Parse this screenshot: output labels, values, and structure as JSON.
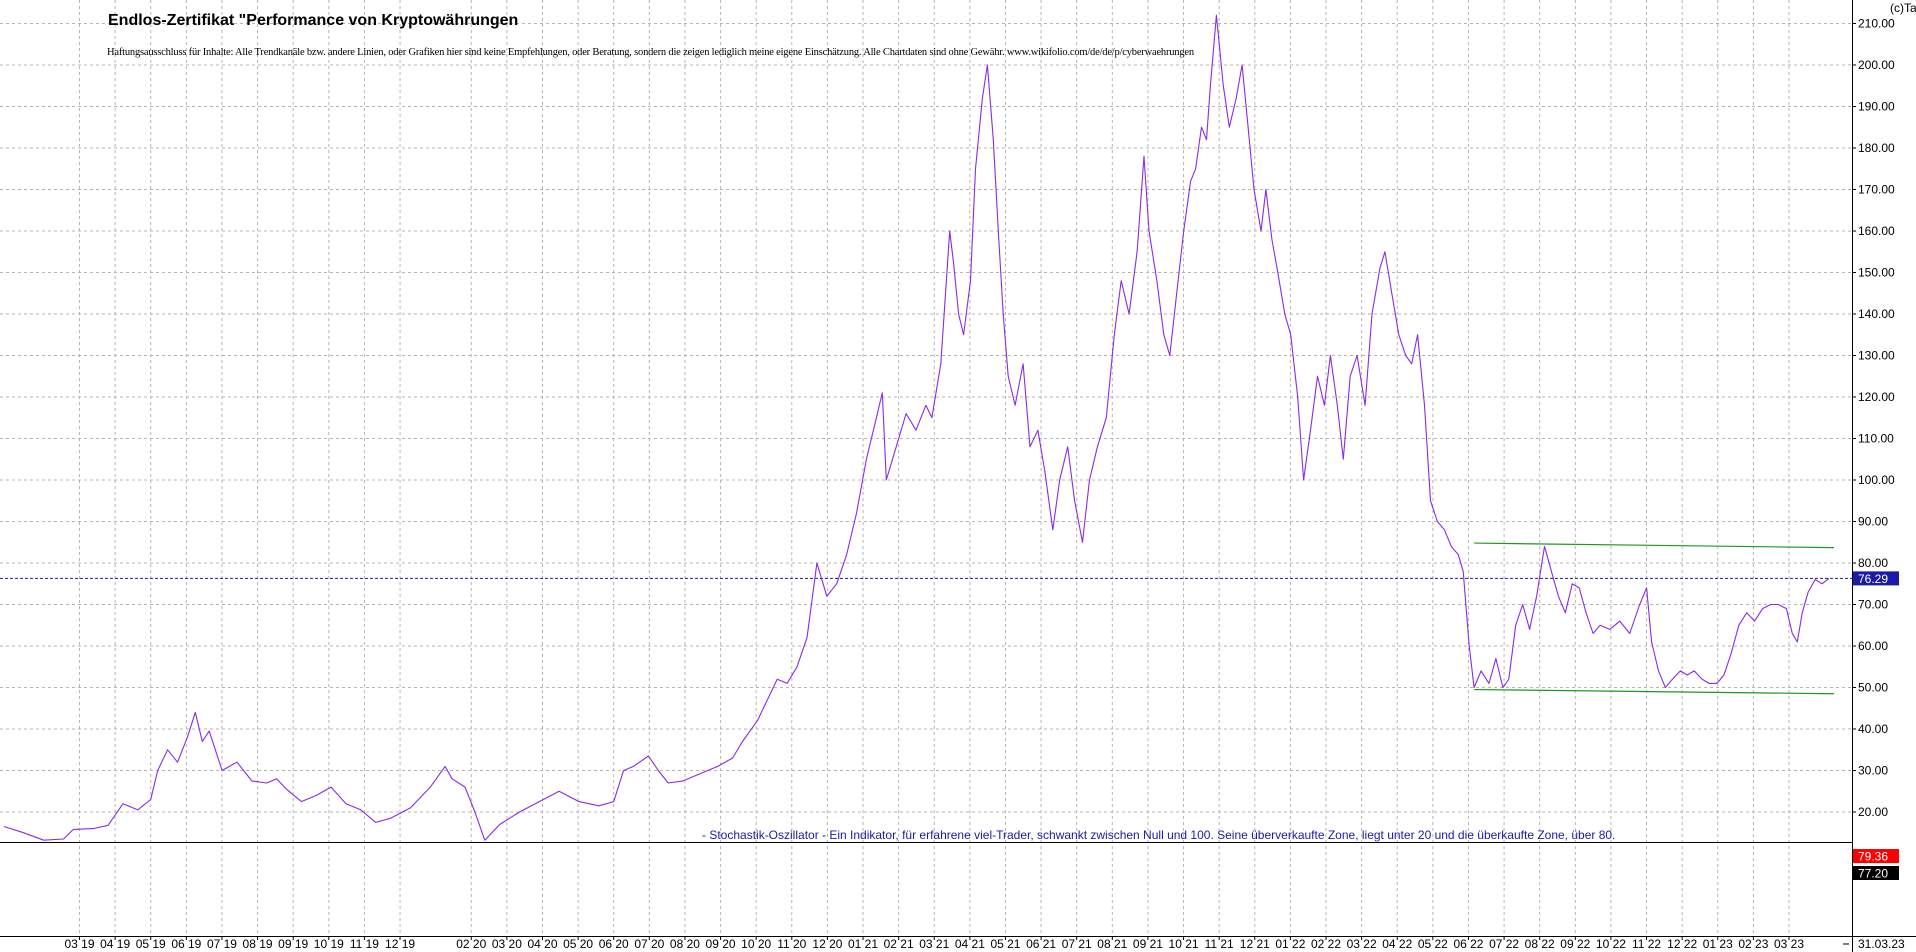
{
  "chart_data": {
    "type": "line",
    "title": "Endlos-Zertifikat \"Performance von Kryptowährungen",
    "subtitle": "Haftungsausschluss für Inhalte: Alle Trendkanäle bzw. andere Linien, oder Grafiken hier sind keine Empfehlungen, oder Beratung, sondern die zeigen lediglich meine eigene Einschätzung. Alle Chartdaten sind ohne Gewähr.  www.wikifolio.com/de/de/p/cyberwaehrungen",
    "watermark": "(c)Tai-Pan",
    "indicator_note": "- Stochastik-Oszillator - Ein Indikator, für erfahrene viel-Trader, schwankt zwischen Null und 100. Seine überverkaufte Zone, liegt unter 20 und die überkaufte Zone, über 80.",
    "ylim": [
      11,
      212
    ],
    "y_ticks": [
      "210.00",
      "200.00",
      "190.00",
      "180.00",
      "170.00",
      "160.00",
      "150.00",
      "140.00",
      "130.00",
      "120.00",
      "110.00",
      "100.00",
      "90.00",
      "80.00",
      "70.00",
      "60.00",
      "50.00",
      "40.00",
      "30.00",
      "20.00"
    ],
    "x_ticks": [
      "03 19",
      "04 19",
      "05 19",
      "06 19",
      "07 19",
      "08 19",
      "09 19",
      "10 19",
      "11 19",
      "12 19",
      "02 20",
      "03 20",
      "04 20",
      "05 20",
      "06 20",
      "07 20",
      "08 20",
      "09 20",
      "10 20",
      "11 20",
      "12 20",
      "01 21",
      "02 21",
      "03 21",
      "04 21",
      "05 21",
      "06 21",
      "07 21",
      "08 21",
      "09 21",
      "10 21",
      "11 21",
      "12 21",
      "01 22",
      "02 22",
      "03 22",
      "04 22",
      "05 22",
      "06 22",
      "07 22",
      "08 22",
      "09 22",
      "10 22",
      "11 22",
      "12 22",
      "01 23",
      "02 23",
      "03 23"
    ],
    "x_last_label": "31.03.23",
    "price_series": {
      "name": "Kurs",
      "color": "#8a2be2",
      "points": [
        [
          0,
          16.5
        ],
        [
          2,
          15.0
        ],
        [
          4,
          13.2
        ],
        [
          6,
          13.5
        ],
        [
          7,
          15.8
        ],
        [
          9,
          16.0
        ],
        [
          10.5,
          16.8
        ],
        [
          12,
          22.0
        ],
        [
          13.5,
          20.5
        ],
        [
          14.8,
          23.0
        ],
        [
          15.5,
          30.0
        ],
        [
          16.5,
          35.0
        ],
        [
          17.5,
          32.0
        ],
        [
          18.5,
          38.0
        ],
        [
          19.3,
          44.0
        ],
        [
          20,
          37.0
        ],
        [
          20.7,
          39.5
        ],
        [
          22,
          30.0
        ],
        [
          23.5,
          32.0
        ],
        [
          25,
          27.5
        ],
        [
          26.5,
          27.0
        ],
        [
          27.5,
          28.0
        ],
        [
          28.5,
          25.5
        ],
        [
          30,
          22.5
        ],
        [
          31.5,
          24.0
        ],
        [
          33,
          26.0
        ],
        [
          34.5,
          22.0
        ],
        [
          36,
          20.5
        ],
        [
          37.5,
          17.5
        ],
        [
          39,
          18.5
        ],
        [
          41,
          21.0
        ],
        [
          43,
          26.0
        ],
        [
          44.5,
          31.0
        ],
        [
          45.2,
          28.0
        ],
        [
          46.5,
          26.0
        ],
        [
          47.5,
          20.0
        ],
        [
          48.5,
          13.2
        ],
        [
          50,
          17.0
        ],
        [
          52,
          20.0
        ],
        [
          54,
          22.5
        ],
        [
          56,
          25.0
        ],
        [
          58,
          22.5
        ],
        [
          60,
          21.5
        ],
        [
          61.5,
          22.5
        ],
        [
          62.5,
          30.0
        ],
        [
          63.5,
          31.0
        ],
        [
          65,
          33.5
        ],
        [
          66,
          30.0
        ],
        [
          67,
          27.0
        ],
        [
          68.5,
          27.5
        ],
        [
          70,
          29.0
        ],
        [
          72,
          31.0
        ],
        [
          73.5,
          33.0
        ],
        [
          74.5,
          37.0
        ],
        [
          76,
          42.0
        ],
        [
          77,
          47.0
        ],
        [
          78,
          52.0
        ],
        [
          79,
          51.0
        ],
        [
          80,
          55.0
        ],
        [
          81,
          62.0
        ],
        [
          82,
          80.0
        ],
        [
          83,
          72.0
        ],
        [
          84,
          75.0
        ],
        [
          85,
          82.0
        ],
        [
          86,
          92.0
        ],
        [
          87,
          105.0
        ],
        [
          88,
          115.0
        ],
        [
          88.6,
          121.0
        ],
        [
          89,
          100.0
        ],
        [
          90,
          108.0
        ],
        [
          91,
          116.0
        ],
        [
          92,
          112.0
        ],
        [
          93,
          118.0
        ],
        [
          93.6,
          115.0
        ],
        [
          94.5,
          128.0
        ],
        [
          95.4,
          160.0
        ],
        [
          95.8,
          152.0
        ],
        [
          96.3,
          140.0
        ],
        [
          96.8,
          135.0
        ],
        [
          97.5,
          148.0
        ],
        [
          98,
          175.0
        ],
        [
          98.7,
          192.0
        ],
        [
          99.2,
          200.0
        ],
        [
          99.8,
          182.0
        ],
        [
          100.3,
          160.0
        ],
        [
          100.8,
          140.0
        ],
        [
          101.3,
          125.0
        ],
        [
          102,
          118.0
        ],
        [
          102.8,
          128.0
        ],
        [
          103.5,
          108.0
        ],
        [
          104.3,
          112.0
        ],
        [
          105,
          102.0
        ],
        [
          105.8,
          88.0
        ],
        [
          106.5,
          100.0
        ],
        [
          107.3,
          108.0
        ],
        [
          108,
          95.0
        ],
        [
          108.8,
          85.0
        ],
        [
          109.5,
          100.0
        ],
        [
          110.3,
          108.0
        ],
        [
          111.2,
          115.0
        ],
        [
          112,
          135.0
        ],
        [
          112.7,
          148.0
        ],
        [
          113.5,
          140.0
        ],
        [
          114.3,
          155.0
        ],
        [
          115,
          178.0
        ],
        [
          115.5,
          160.0
        ],
        [
          116.3,
          148.0
        ],
        [
          117,
          135.0
        ],
        [
          117.6,
          130.0
        ],
        [
          118.3,
          145.0
        ],
        [
          119,
          160.0
        ],
        [
          119.7,
          172.0
        ],
        [
          120.2,
          175.0
        ],
        [
          120.8,
          185.0
        ],
        [
          121.3,
          182.0
        ],
        [
          121.7,
          195.0
        ],
        [
          122.3,
          212.0
        ],
        [
          123,
          195.0
        ],
        [
          123.6,
          185.0
        ],
        [
          124.3,
          192.0
        ],
        [
          124.9,
          200.0
        ],
        [
          125.5,
          185.0
        ],
        [
          126.1,
          170.0
        ],
        [
          126.8,
          160.0
        ],
        [
          127.3,
          170.0
        ],
        [
          127.9,
          158.0
        ],
        [
          128.5,
          150.0
        ],
        [
          129.2,
          140.0
        ],
        [
          129.8,
          135.0
        ],
        [
          130.5,
          120.0
        ],
        [
          131.1,
          100.0
        ],
        [
          131.8,
          112.0
        ],
        [
          132.5,
          125.0
        ],
        [
          133.2,
          118.0
        ],
        [
          133.8,
          130.0
        ],
        [
          134.5,
          118.0
        ],
        [
          135.1,
          105.0
        ],
        [
          135.8,
          125.0
        ],
        [
          136.5,
          130.0
        ],
        [
          137.3,
          118.0
        ],
        [
          138,
          140.0
        ],
        [
          138.8,
          151.0
        ],
        [
          139.3,
          155.0
        ],
        [
          140,
          145.0
        ],
        [
          140.7,
          135.0
        ],
        [
          141.4,
          130.0
        ],
        [
          142,
          128.0
        ],
        [
          142.6,
          135.0
        ],
        [
          143.3,
          118.0
        ],
        [
          143.9,
          95.0
        ],
        [
          144.6,
          90.0
        ],
        [
          145.3,
          88.0
        ],
        [
          146,
          84.0
        ],
        [
          146.7,
          82.0
        ],
        [
          147.2,
          78.0
        ],
        [
          147.8,
          60.0
        ],
        [
          148.3,
          50.0
        ],
        [
          149,
          54.0
        ],
        [
          149.8,
          51.0
        ],
        [
          150.5,
          57.0
        ],
        [
          151.2,
          50.0
        ],
        [
          151.8,
          52.0
        ],
        [
          152.5,
          65.0
        ],
        [
          153.2,
          70.0
        ],
        [
          153.9,
          64.0
        ],
        [
          154.6,
          72.0
        ],
        [
          155.4,
          84.0
        ],
        [
          156.1,
          78.0
        ],
        [
          156.8,
          72.0
        ],
        [
          157.5,
          68.0
        ],
        [
          158.2,
          75.0
        ],
        [
          158.9,
          74.0
        ],
        [
          159.6,
          68.0
        ],
        [
          160.3,
          63.0
        ],
        [
          161,
          65.0
        ],
        [
          162,
          64.0
        ],
        [
          163,
          66.0
        ],
        [
          164,
          63.0
        ],
        [
          165,
          70.0
        ],
        [
          165.7,
          74.0
        ],
        [
          166.2,
          61.0
        ],
        [
          166.9,
          54.0
        ],
        [
          167.6,
          50.0
        ],
        [
          168.3,
          52.0
        ],
        [
          169.1,
          54.0
        ],
        [
          169.8,
          53.0
        ],
        [
          170.5,
          54.0
        ],
        [
          171.3,
          52.0
        ],
        [
          172,
          51.0
        ],
        [
          172.8,
          51.0
        ],
        [
          173.5,
          53.0
        ],
        [
          174.2,
          58.0
        ],
        [
          175,
          65.0
        ],
        [
          175.8,
          68.0
        ],
        [
          176.6,
          66.0
        ],
        [
          177.4,
          69.0
        ],
        [
          178.2,
          70.0
        ],
        [
          179,
          70.0
        ],
        [
          179.8,
          69.0
        ],
        [
          180.4,
          63.0
        ],
        [
          180.9,
          61.0
        ],
        [
          181.4,
          68.0
        ],
        [
          182,
          73.0
        ],
        [
          182.7,
          76.0
        ],
        [
          183.4,
          75.0
        ],
        [
          184.1,
          76.3
        ]
      ]
    },
    "trendlines": [
      {
        "name": "upper",
        "color": "#1a9a1a",
        "from": [
          148.3,
          84.8
        ],
        "to": [
          184.6,
          83.7
        ]
      },
      {
        "name": "lower",
        "color": "#1a9a1a",
        "from": [
          148.3,
          49.5
        ],
        "to": [
          184.6,
          48.5
        ]
      }
    ],
    "last_value_line": {
      "value": 76.29,
      "label": "76.29",
      "color": "#1a1aa6"
    },
    "indicator_values": [
      {
        "label": "79.36",
        "bg": "#ff0000",
        "fg": "#ffffff"
      },
      {
        "label": "77.20",
        "bg": "#000000",
        "fg": "#ffffff"
      }
    ],
    "grid": true
  }
}
